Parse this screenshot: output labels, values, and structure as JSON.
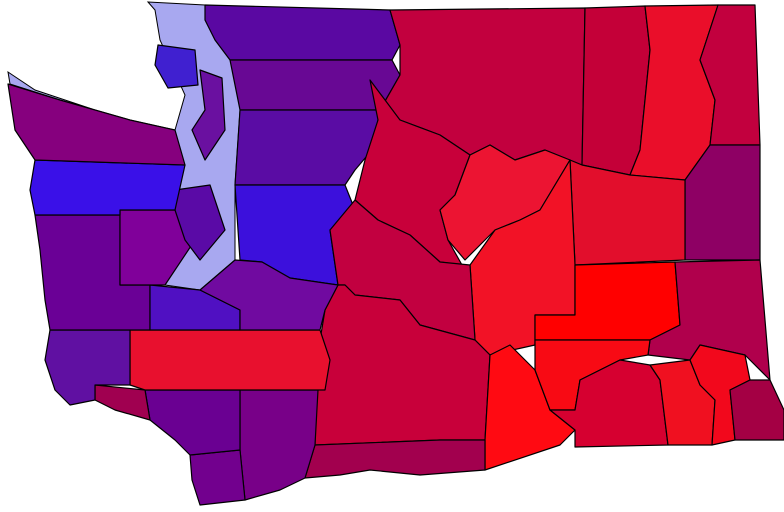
{
  "map": {
    "background": "#ffffff",
    "water_color": "#a8a8f0",
    "border_color": "#000000",
    "region_colors": {
      "whatcom": "#5a08a2",
      "skagit": "#680894",
      "snohomish": "#5a0ca4",
      "king": "#3c10dc",
      "okanogan": "#c2003e",
      "ferry": "#c40038",
      "stevens": "#ea0e2a",
      "pend-oreille": "#c2003e",
      "spokane": "#8e0064",
      "chelan": "#c8003a",
      "douglas": "#ec1432",
      "lincoln": "#e20e2c",
      "grant": "#f21226",
      "adams": "#ff0000",
      "whitman": "#b0004c",
      "kittitas": "#c20040",
      "yakima": "#c8003a",
      "benton": "#ff0a12",
      "franklin": "#f80a14",
      "walla-walla": "#d60030",
      "columbia": "#f01020",
      "garfield": "#f2081c",
      "asotin": "#a40044",
      "klickitat": "#a2004e",
      "skamania": "#780088",
      "clark": "#72008e",
      "cowlitz": "#6a0092",
      "wahkiakum": "#a00050",
      "lewis": "#e8102e",
      "pacific": "#6010a2",
      "grays-harbor": "#6a0096",
      "thurston": "#5010c2",
      "pierce": "#700aa0",
      "mason": "#80009a",
      "kitsap": "#5a0aa6",
      "jefferson": "#3a10e8",
      "clallam": "#86007e",
      "san-juan": "#4020d0",
      "island": "#6a10a0"
    }
  }
}
